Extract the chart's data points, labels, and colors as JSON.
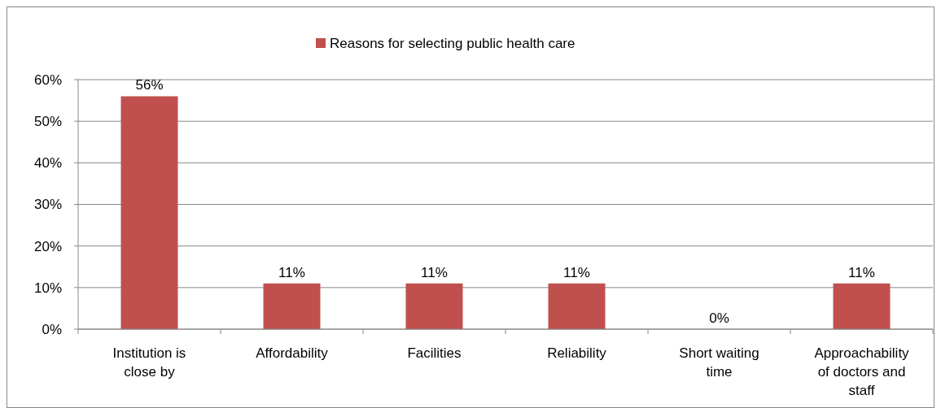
{
  "chart_data": {
    "type": "bar",
    "categories": [
      "Institution is close by",
      "Affordability",
      "Facilities",
      "Reliability",
      "Short waiting time",
      "Approachability of doctors and staff"
    ],
    "series": [
      {
        "name": "Reasons for selecting public health care",
        "color": "#c0504d",
        "values": [
          56,
          11,
          11,
          11,
          0,
          11
        ],
        "value_labels": [
          "56%",
          "11%",
          "11%",
          "11%",
          "0%",
          "11%"
        ]
      }
    ],
    "ylim": [
      0,
      60
    ],
    "yticks": [
      {
        "value": 0,
        "label": "0%"
      },
      {
        "value": 10,
        "label": "10%"
      },
      {
        "value": 20,
        "label": "20%"
      },
      {
        "value": 30,
        "label": "30%"
      },
      {
        "value": 40,
        "label": "40%"
      },
      {
        "value": 50,
        "label": "50%"
      },
      {
        "value": 60,
        "label": "60%"
      }
    ],
    "grid": "y",
    "legend": "top"
  }
}
